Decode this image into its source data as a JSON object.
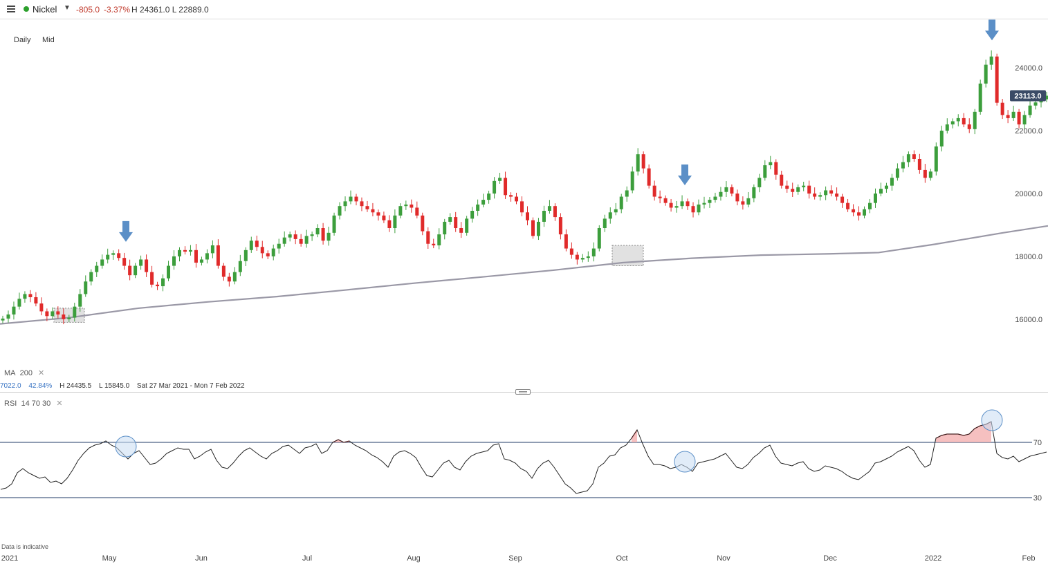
{
  "header": {
    "instrument": "Nickel",
    "change": "-805.0",
    "change_pct": "-3.37%",
    "high_low": "H 24361.0  L 22889.0",
    "status_color": "#2ca02c"
  },
  "toolbar": {
    "interval": "Daily",
    "price_type": "Mid"
  },
  "indicators": {
    "ma_label": "MA",
    "ma_period": "200",
    "rsi_label": "RSI",
    "rsi_params": "14  70  30",
    "remove_glyph": "✕"
  },
  "stats": {
    "change_val": "7022.0",
    "change_pct": "42.84%",
    "high": "H 24435.5",
    "low": "L 15845.0",
    "range": "Sat 27 Mar 2021 - Mon 7 Feb 2022"
  },
  "footnote": "Data is indicative",
  "colors": {
    "up": "#3c9e3c",
    "down": "#e02a2a",
    "ma": "#9a98a6",
    "rsi": "#222222",
    "arrow": "#5b8fc7",
    "price_tag": "#3a4a66"
  },
  "icons": {
    "menu": "hamburger-icon",
    "dropdown": "caret-down-icon",
    "arrow": "down-arrow-icon",
    "handle": "resize-handle-icon"
  },
  "chart_data": [
    {
      "type": "candlestick",
      "title": "Nickel",
      "ylim": [
        14500,
        25500
      ],
      "y_ticks": [
        16000,
        18000,
        20000,
        22000,
        24000
      ],
      "y_tick_labels": [
        "16000.0",
        "18000.0",
        "20000.0",
        "22000.0",
        "24000.0"
      ],
      "x_labels": [
        "2021",
        "May",
        "Jun",
        "Jul",
        "Aug",
        "Sep",
        "Oct",
        "Nov",
        "Dec",
        "2022",
        "Feb"
      ],
      "current_price_label": "23113.0",
      "current_price": 23113,
      "close_series": [
        16020,
        16150,
        16400,
        16650,
        16800,
        16700,
        16500,
        16250,
        16100,
        16250,
        16150,
        16000,
        16050,
        16400,
        16800,
        17200,
        17500,
        17700,
        17900,
        18050,
        18100,
        17950,
        17700,
        17400,
        17700,
        17900,
        17500,
        17100,
        17050,
        17300,
        17700,
        18000,
        18200,
        18150,
        18200,
        17800,
        17900,
        18100,
        18350,
        17700,
        17350,
        17200,
        17500,
        17850,
        18200,
        18500,
        18300,
        18100,
        18000,
        18250,
        18400,
        18600,
        18700,
        18550,
        18400,
        18650,
        18700,
        18900,
        18500,
        18750,
        19300,
        19600,
        19750,
        19900,
        19750,
        19600,
        19500,
        19400,
        19300,
        19150,
        18900,
        19300,
        19600,
        19650,
        19550,
        19300,
        18800,
        18400,
        18350,
        18700,
        19100,
        19250,
        18900,
        18750,
        19200,
        19450,
        19650,
        19800,
        20000,
        20400,
        20500,
        19950,
        19900,
        19750,
        19400,
        19150,
        18650,
        19100,
        19450,
        19600,
        19250,
        18700,
        18250,
        18050,
        17900,
        17950,
        18000,
        18250,
        18900,
        19200,
        19400,
        19500,
        19900,
        20100,
        20700,
        21250,
        20800,
        20250,
        19900,
        19850,
        19700,
        19550,
        19600,
        19750,
        19600,
        19400,
        19650,
        19700,
        19800,
        19900,
        20050,
        20200,
        20000,
        19750,
        19650,
        19850,
        20200,
        20500,
        20900,
        21000,
        20600,
        20250,
        20150,
        20050,
        20200,
        20250,
        20000,
        19900,
        19950,
        20100,
        20000,
        19900,
        19700,
        19500,
        19400,
        19300,
        19500,
        19700,
        20000,
        20150,
        20250,
        20500,
        20800,
        21000,
        21250,
        21100,
        20750,
        20500,
        20700,
        21500,
        22000,
        22200,
        22300,
        22400,
        22200,
        22050,
        22600,
        23500,
        24100,
        24361,
        22889,
        22500,
        22400,
        22600,
        22200,
        22500,
        22800,
        22900,
        23000,
        23113
      ],
      "ma200_points": [
        [
          0,
          15850
        ],
        [
          100,
          16050
        ],
        [
          200,
          16350
        ],
        [
          300,
          16550
        ],
        [
          400,
          16720
        ],
        [
          500,
          16930
        ],
        [
          600,
          17150
        ],
        [
          700,
          17350
        ],
        [
          800,
          17560
        ],
        [
          900,
          17800
        ],
        [
          1000,
          17940
        ],
        [
          1100,
          18040
        ],
        [
          1200,
          18080
        ],
        [
          1270,
          18120
        ],
        [
          1350,
          18380
        ],
        [
          1450,
          18750
        ],
        [
          1515,
          18970
        ]
      ],
      "arrow_markers_x": [
        182,
        990,
        1434
      ],
      "highlight_boxes": [
        {
          "x": [
            78,
            122
          ],
          "y": [
            15900,
            16350
          ]
        },
        {
          "x": [
            885,
            930
          ],
          "y": [
            17700,
            18350
          ]
        }
      ]
    },
    {
      "type": "line",
      "title": "RSI 14",
      "ylim": [
        10,
        95
      ],
      "levels": [
        70,
        30
      ],
      "y_tick_labels": [
        "70",
        "30"
      ],
      "values": [
        36,
        37,
        40,
        48,
        51,
        48,
        46,
        44,
        45,
        41,
        42,
        40,
        44,
        50,
        57,
        62,
        66,
        68,
        69,
        71,
        68,
        66,
        62,
        58,
        62,
        64,
        59,
        54,
        55,
        58,
        62,
        64,
        66,
        65,
        65,
        58,
        60,
        63,
        65,
        57,
        52,
        51,
        55,
        60,
        64,
        66,
        63,
        60,
        58,
        62,
        64,
        67,
        68,
        65,
        62,
        66,
        67,
        69,
        62,
        64,
        70,
        72,
        70,
        71,
        68,
        66,
        64,
        61,
        59,
        56,
        52,
        60,
        63,
        64,
        62,
        59,
        52,
        46,
        45,
        50,
        55,
        57,
        52,
        50,
        56,
        60,
        62,
        63,
        64,
        68,
        69,
        58,
        57,
        55,
        51,
        49,
        44,
        51,
        55,
        57,
        52,
        46,
        40,
        37,
        33,
        34,
        35,
        40,
        52,
        55,
        60,
        61,
        66,
        68,
        73,
        79,
        69,
        60,
        54,
        54,
        53,
        51,
        52,
        54,
        52,
        49,
        55,
        56,
        57,
        58,
        60,
        62,
        57,
        52,
        51,
        54,
        59,
        62,
        66,
        68,
        60,
        55,
        54,
        53,
        55,
        56,
        51,
        49,
        50,
        53,
        52,
        51,
        49,
        46,
        44,
        43,
        46,
        49,
        55,
        56,
        58,
        60,
        63,
        65,
        67,
        64,
        57,
        52,
        54,
        73,
        75,
        76,
        76,
        76,
        75,
        76,
        80,
        82,
        83,
        85,
        62,
        59,
        58,
        60,
        56,
        58,
        60,
        61,
        62,
        63
      ]
    }
  ]
}
